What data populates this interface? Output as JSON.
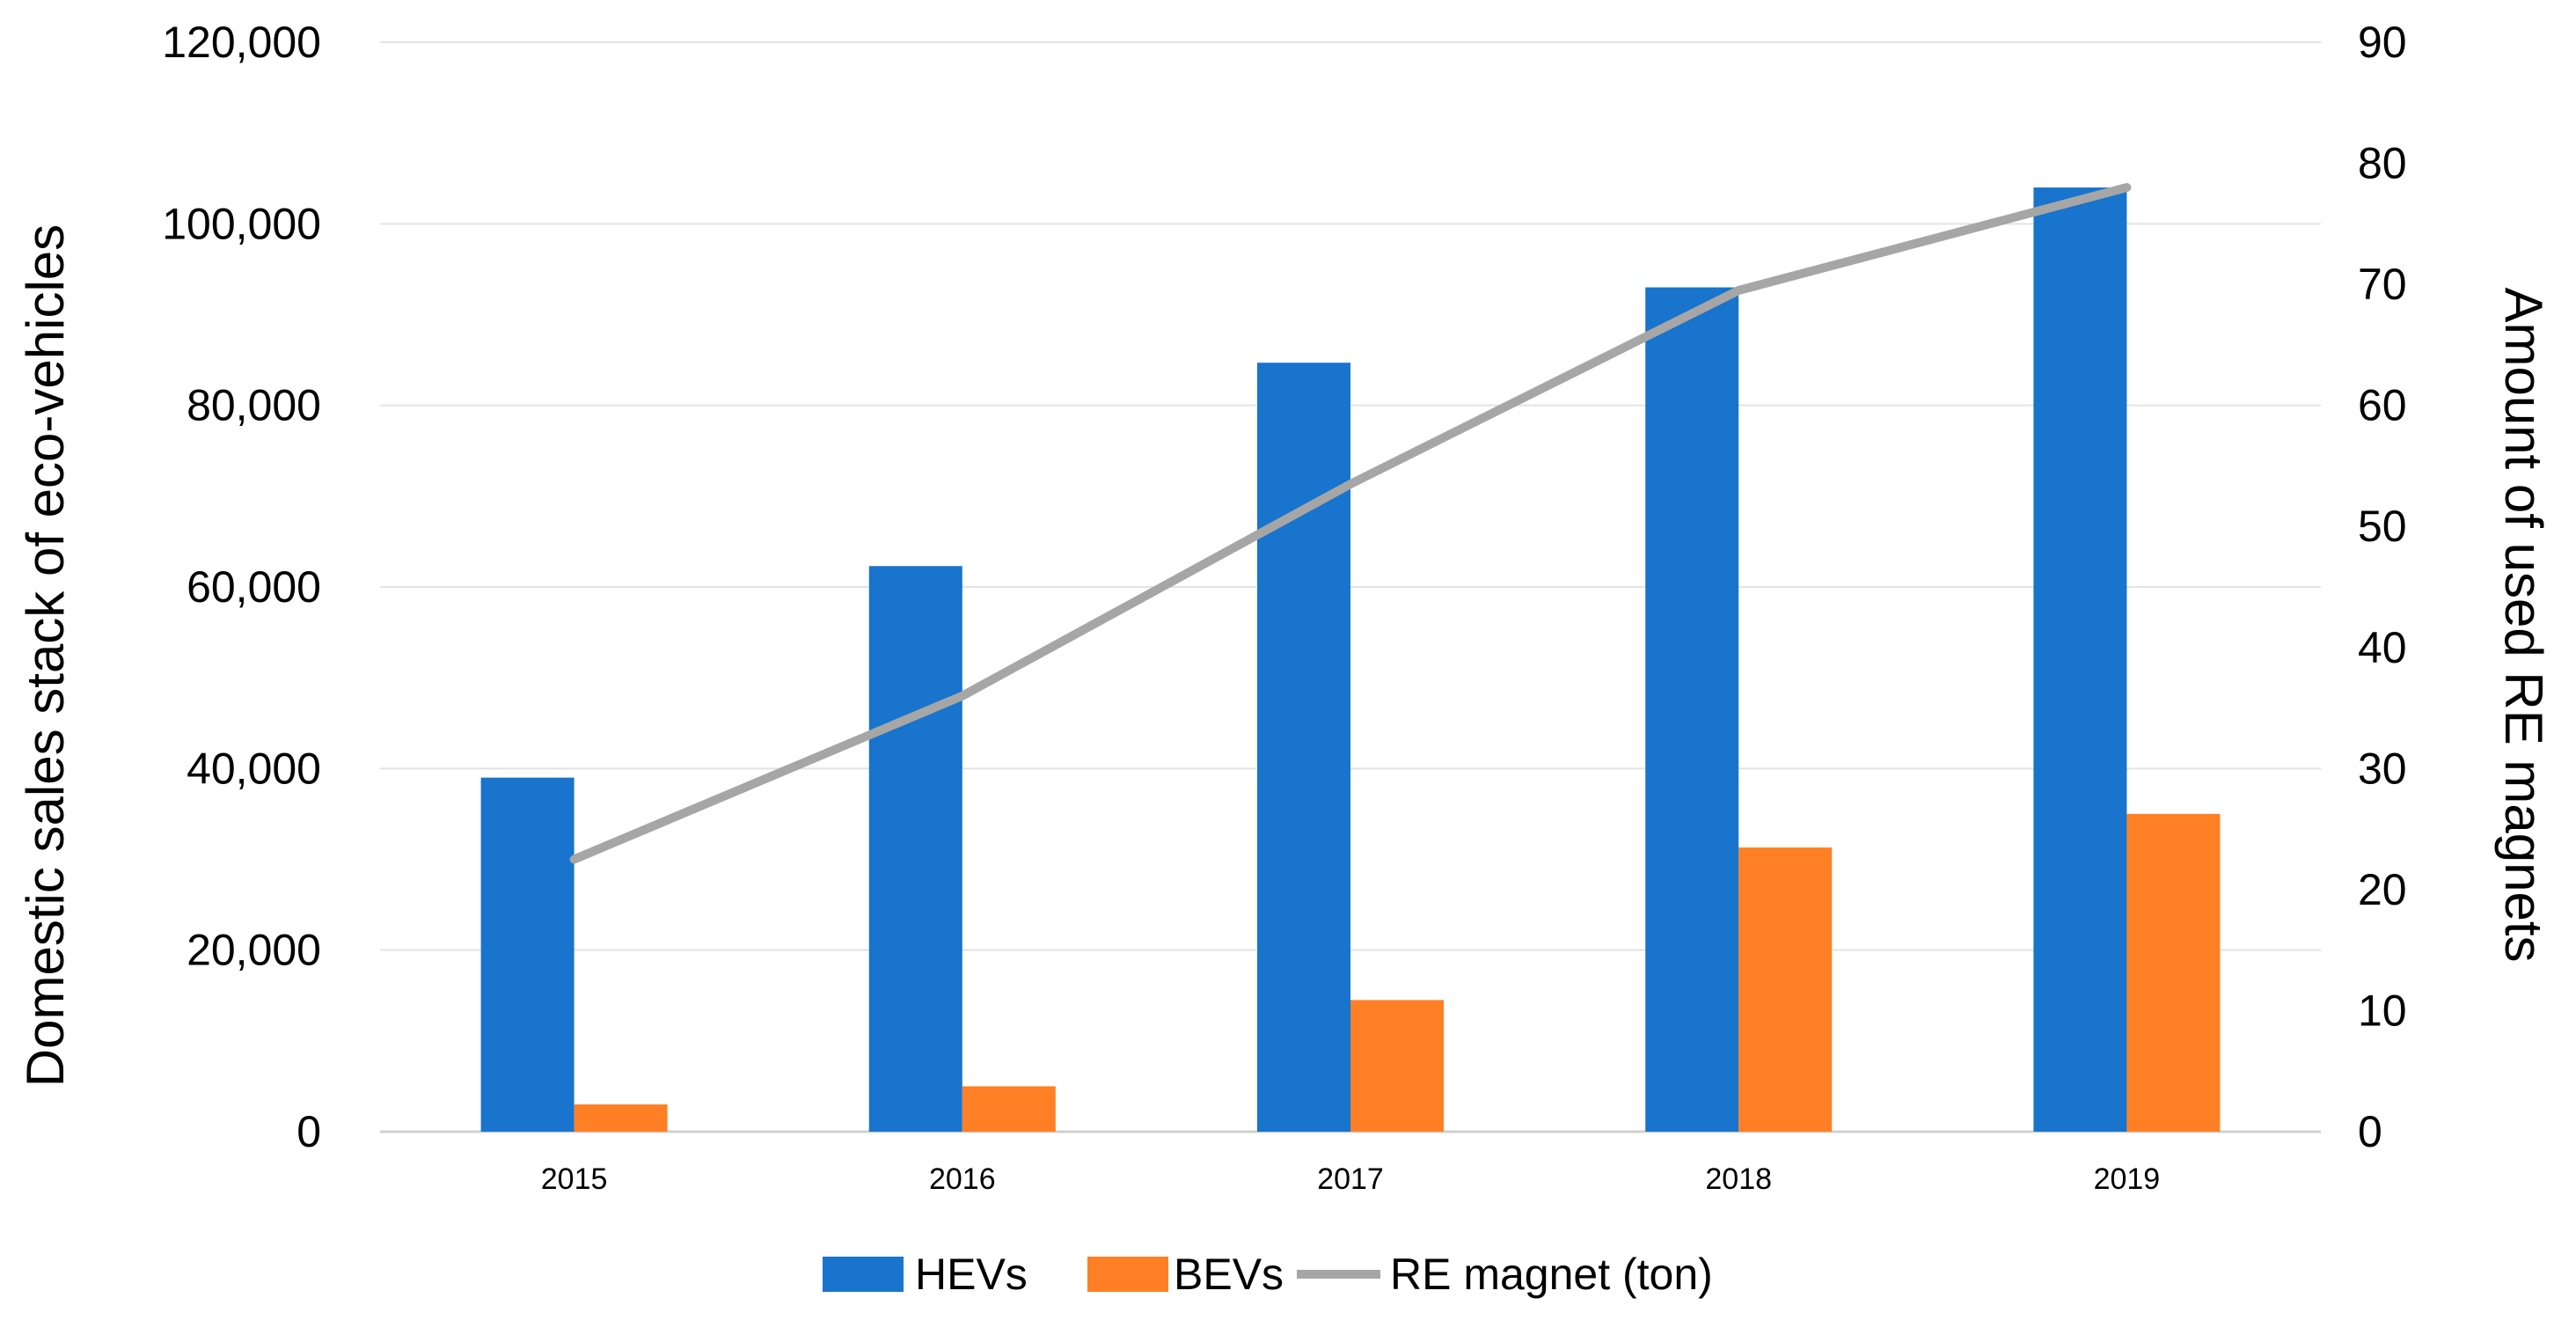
{
  "chart_data": {
    "type": "bar",
    "title": "",
    "categories": [
      "2015",
      "2016",
      "2017",
      "2018",
      "2019"
    ],
    "series": [
      {
        "name": "HEVs",
        "kind": "bar",
        "axis": "left",
        "color": "#1874CD",
        "values": [
          39000,
          62300,
          84700,
          93000,
          104000
        ]
      },
      {
        "name": "BEVs",
        "kind": "bar",
        "axis": "left",
        "color": "#FF7F24",
        "values": [
          3000,
          5000,
          14500,
          31300,
          35000
        ]
      },
      {
        "name": "RE magnet (ton)",
        "kind": "line",
        "axis": "right",
        "color": "#A6A6A6",
        "values": [
          22.5,
          36,
          53.5,
          69.5,
          78
        ]
      }
    ],
    "y_left": {
      "label": "Domestic sales  stack of eco-vehicles",
      "range": [
        0,
        120000
      ],
      "ticks": [
        "0",
        "20,000",
        "40,000",
        "60,000",
        "80,000",
        "100,000",
        "120,000"
      ]
    },
    "y_right": {
      "label": "Amount of used RE magnets",
      "range": [
        0,
        90
      ],
      "ticks": [
        "0",
        "10",
        "20",
        "30",
        "40",
        "50",
        "60",
        "70",
        "80",
        "90"
      ]
    },
    "xlabel": "",
    "grid": true,
    "legend_position": "bottom-center"
  }
}
